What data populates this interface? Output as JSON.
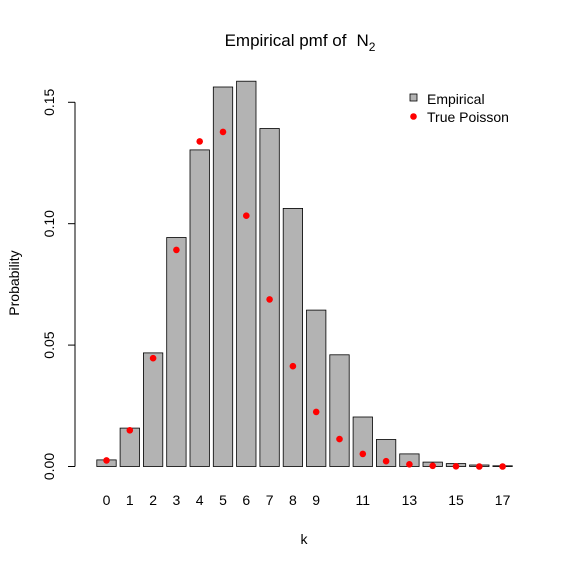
{
  "chart_data": {
    "type": "bar",
    "title": "Empirical pmf of",
    "title_symbol": "N",
    "title_subscript": "2",
    "xlabel": "k",
    "ylabel": "Probability",
    "ylim": [
      0,
      0.16
    ],
    "yticks": [
      0.0,
      0.05,
      0.1,
      0.15
    ],
    "ytick_labels": [
      "0.00",
      "0.05",
      "0.10",
      "0.15"
    ],
    "categories": [
      "0",
      "1",
      "2",
      "3",
      "4",
      "5",
      "6",
      "7",
      "8",
      "9",
      "10",
      "11",
      "12",
      "13",
      "14",
      "15",
      "16",
      "17"
    ],
    "xtick_labels": [
      "0",
      "1",
      "2",
      "3",
      "4",
      "5",
      "6",
      "7",
      "8",
      "9",
      "",
      "11",
      "",
      "13",
      "",
      "15",
      "",
      "17"
    ],
    "series": [
      {
        "name": "Empirical",
        "type": "bar",
        "color": "#b3b3b3",
        "values": [
          0.0027,
          0.0158,
          0.0468,
          0.0943,
          0.1304,
          0.1563,
          0.1587,
          0.1392,
          0.1063,
          0.0644,
          0.046,
          0.0204,
          0.0111,
          0.0052,
          0.0018,
          0.0012,
          0.0006,
          0.0003
        ]
      },
      {
        "name": "True Poisson",
        "type": "scatter",
        "color": "#ff0000",
        "values": [
          0.0025,
          0.0149,
          0.0446,
          0.0892,
          0.1339,
          0.1378,
          0.1033,
          0.0688,
          0.0413,
          0.0225,
          0.0113,
          0.0052,
          0.0022,
          0.0009,
          0.0003,
          0.0001,
          0.0,
          0.0
        ]
      }
    ],
    "legend_position": "top-right",
    "grid": false
  }
}
